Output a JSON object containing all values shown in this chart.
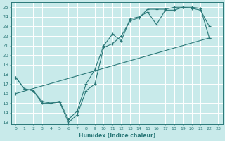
{
  "xlabel": "Humidex (Indice chaleur)",
  "bg_color": "#c8eaea",
  "grid_color": "#ffffff",
  "line_color": "#2a7878",
  "xlim": [
    -0.5,
    23.5
  ],
  "ylim": [
    12.8,
    25.5
  ],
  "xticks": [
    0,
    1,
    2,
    3,
    4,
    5,
    6,
    7,
    8,
    9,
    10,
    11,
    12,
    13,
    14,
    15,
    16,
    17,
    18,
    19,
    20,
    21,
    22,
    23
  ],
  "yticks": [
    13,
    14,
    15,
    16,
    17,
    18,
    19,
    20,
    21,
    22,
    23,
    24,
    25
  ],
  "line1_x": [
    0,
    1,
    2,
    3,
    4,
    5,
    6,
    7,
    8,
    9,
    10,
    11,
    12,
    13,
    14,
    15,
    16,
    17,
    18,
    19,
    20,
    21,
    22
  ],
  "line1_y": [
    17.7,
    16.5,
    16.3,
    15.0,
    15.0,
    15.1,
    13.0,
    13.8,
    16.3,
    17.0,
    20.8,
    21.2,
    22.0,
    23.6,
    23.9,
    24.8,
    24.8,
    24.8,
    25.0,
    25.0,
    25.0,
    24.9,
    21.8
  ],
  "line2_x": [
    0,
    1,
    2,
    3,
    4,
    5,
    6,
    7,
    8,
    9,
    10,
    11,
    12,
    13,
    14,
    15,
    16,
    17,
    18,
    19,
    20,
    21,
    22
  ],
  "line2_y": [
    17.7,
    16.5,
    16.3,
    15.2,
    15.0,
    15.2,
    13.3,
    14.2,
    17.0,
    18.5,
    21.0,
    22.2,
    21.5,
    23.8,
    24.0,
    24.5,
    23.2,
    24.7,
    24.7,
    25.0,
    24.9,
    24.7,
    23.0
  ],
  "line3_x": [
    0,
    22
  ],
  "line3_y": [
    16.0,
    21.8
  ],
  "marker_size": 2.5
}
